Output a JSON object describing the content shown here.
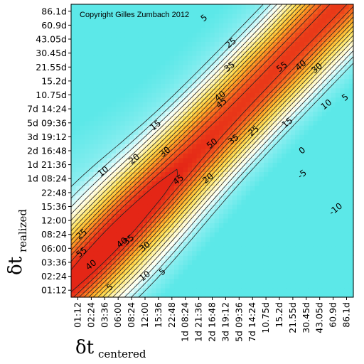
{
  "chart_data": {
    "type": "heatmap",
    "title": "",
    "annotation": "Copyright Gilles Zumbach 2012",
    "xlabel": {
      "main": "δt",
      "sub": "centered"
    },
    "ylabel": {
      "main": "δt",
      "sub": "realized"
    },
    "x_ticks": [
      "01:12",
      "02:24",
      "03:36",
      "06:00",
      "08:24",
      "12:00",
      "15:36",
      "22:48",
      "1d 08:24",
      "1d 21:36",
      "2d 16:48",
      "3d 19:12",
      "5d 09:36",
      "7d 14:24",
      "10.75d",
      "15.2d",
      "21.55d",
      "30.45d",
      "43.05d",
      "60.9d",
      "86.1d"
    ],
    "y_ticks": [
      "01:12",
      "02:24",
      "03:36",
      "06:00",
      "08:24",
      "12:00",
      "15:36",
      "22:48",
      "1d 08:24",
      "1d 21:36",
      "2d 16:48",
      "3d 19:12",
      "5d 09:36",
      "7d 14:24",
      "10.75d",
      "15.2d",
      "21.55d",
      "30.45d",
      "43.05d",
      "60.9d",
      "86.1d"
    ],
    "contour_levels": [
      -10,
      -5,
      0,
      5,
      10,
      15,
      20,
      25,
      30,
      35,
      40,
      45,
      50,
      55
    ],
    "contour_labels": [
      {
        "text": "5",
        "ix": 9.4,
        "iy": 19.5
      },
      {
        "text": "25",
        "ix": 11.4,
        "iy": 17.7
      },
      {
        "text": "35",
        "ix": 11.3,
        "iy": 16.0
      },
      {
        "text": "40",
        "ix": 10.6,
        "iy": 13.9
      },
      {
        "text": "45",
        "ix": 10.7,
        "iy": 13.4
      },
      {
        "text": "55",
        "ix": 15.2,
        "iy": 16.0
      },
      {
        "text": "40",
        "ix": 16.6,
        "iy": 16.1
      },
      {
        "text": "30",
        "ix": 17.8,
        "iy": 15.9
      },
      {
        "text": "10",
        "ix": 18.5,
        "iy": 13.3
      },
      {
        "text": "5",
        "ix": 19.9,
        "iy": 13.8
      },
      {
        "text": "15",
        "ix": 5.8,
        "iy": 11.8
      },
      {
        "text": "20",
        "ix": 4.2,
        "iy": 9.4
      },
      {
        "text": "30",
        "ix": 6.5,
        "iy": 9.9
      },
      {
        "text": "50",
        "ix": 10.0,
        "iy": 10.5
      },
      {
        "text": "35",
        "ix": 11.6,
        "iy": 10.8
      },
      {
        "text": "25",
        "ix": 13.1,
        "iy": 11.4
      },
      {
        "text": "15",
        "ix": 15.6,
        "iy": 12.0
      },
      {
        "text": "0",
        "ix": 16.7,
        "iy": 10.0
      },
      {
        "text": "-5",
        "ix": 16.7,
        "iy": 8.3
      },
      {
        "text": "10",
        "ix": 1.9,
        "iy": 8.5
      },
      {
        "text": "45",
        "ix": 7.5,
        "iy": 7.9
      },
      {
        "text": "20",
        "ix": 9.7,
        "iy": 8.0
      },
      {
        "text": "-10",
        "ix": 19.2,
        "iy": 5.8
      },
      {
        "text": "35",
        "ix": 3.8,
        "iy": 3.6
      },
      {
        "text": "30",
        "ix": 5.0,
        "iy": 3.1
      },
      {
        "text": "25",
        "ix": 0.3,
        "iy": 4.0
      },
      {
        "text": "40",
        "ix": 3.3,
        "iy": 3.4
      },
      {
        "text": "55",
        "ix": 0.3,
        "iy": 2.7
      },
      {
        "text": "40",
        "ix": 1.0,
        "iy": 1.8
      },
      {
        "text": "10",
        "ix": 5.0,
        "iy": 1.0
      },
      {
        "text": "5",
        "ix": 6.3,
        "iy": 1.3
      },
      {
        "text": "5",
        "ix": 2.4,
        "iy": 0.2
      }
    ],
    "grid": false,
    "legend": "none"
  }
}
